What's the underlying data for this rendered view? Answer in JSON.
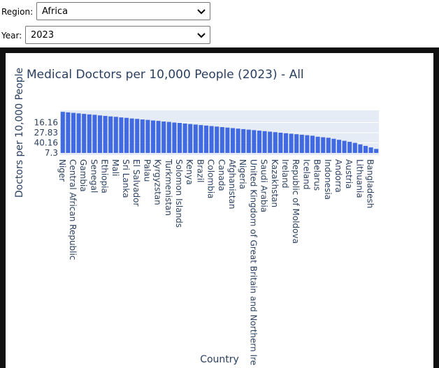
{
  "controls": {
    "region_label": "Region:",
    "region_value": "Africa",
    "year_label": "Year:",
    "year_value": "2023"
  },
  "chart_data": {
    "type": "bar",
    "title": "Medical Doctors per 10,000 People (2023) - All",
    "x_label": "Country",
    "y_label": "Doctors per 10,000 People",
    "categories": [
      "Niger",
      null,
      "Central African Republic",
      null,
      "Gambia",
      null,
      "Senegal",
      null,
      "Ethiopia",
      null,
      "Mali",
      null,
      "Sri Lanka",
      null,
      "El Salvador",
      null,
      "Palau",
      null,
      "Kyrgyzstan",
      null,
      "Turkmenistan",
      null,
      "Solomon Islands",
      null,
      "Kenya",
      null,
      "Brazil",
      null,
      "Colombia",
      null,
      "Canada",
      null,
      "Afghanistan",
      null,
      "Nigeria",
      null,
      "United Kingdom of Great Britain and Northern Ire",
      null,
      "Saudi Arabia",
      null,
      "Kazakhstan",
      null,
      "Ireland",
      null,
      "Republic of Moldova",
      null,
      "Iceland",
      null,
      "Belarus",
      null,
      "Indonesia",
      null,
      "Andorra",
      null,
      "Austria",
      null,
      "Lithuania",
      null,
      "Bangladesh",
      null
    ],
    "values": [
      4.05,
      4.0,
      3.95,
      3.9,
      3.85,
      3.8,
      3.76,
      3.7,
      3.65,
      3.6,
      3.56,
      3.5,
      3.46,
      3.4,
      3.36,
      3.3,
      3.26,
      3.2,
      3.16,
      3.1,
      3.06,
      3.0,
      2.96,
      2.9,
      2.85,
      2.8,
      2.75,
      2.7,
      2.65,
      2.6,
      2.55,
      2.5,
      2.45,
      2.4,
      2.35,
      2.3,
      2.25,
      2.2,
      2.15,
      2.1,
      2.05,
      2.0,
      1.95,
      1.9,
      1.85,
      1.8,
      1.75,
      1.7,
      1.6,
      1.55,
      1.5,
      1.4,
      1.3,
      1.2,
      1.1,
      1.0,
      0.85,
      0.7,
      0.55,
      0.4
    ],
    "color": "#4169e1",
    "ylim": [
      -0.2,
      4.2
    ],
    "yticks": [
      {
        "value": 0,
        "label": "7.3"
      },
      {
        "value": 1,
        "label": "40.16"
      },
      {
        "value": 2,
        "label": "27.83"
      },
      {
        "value": 3,
        "label": "16.16"
      }
    ],
    "grid": true
  }
}
